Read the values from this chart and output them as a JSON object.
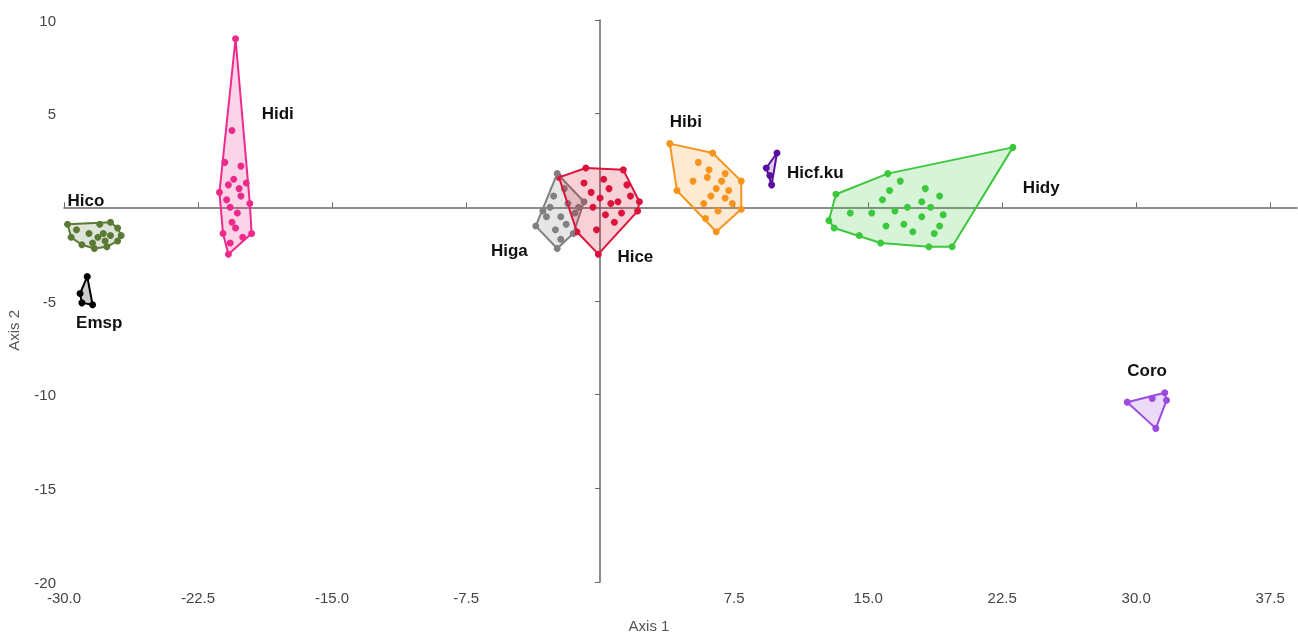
{
  "chart_data": {
    "type": "scatter",
    "xlabel": "Axis 1",
    "ylabel": "Axis 2",
    "xlim": [
      -30,
      39
    ],
    "ylim": [
      -20,
      10
    ],
    "xticks": [
      {
        "value": -30,
        "label": "-30.0"
      },
      -22.5,
      {
        "value": -15,
        "label": "-15.0"
      },
      -7.5,
      7.5,
      {
        "value": 15,
        "label": "15.0"
      },
      22.5,
      {
        "value": 30,
        "label": "30.0"
      },
      37.5
    ],
    "yticks": [
      -20,
      -15,
      -10,
      -5,
      5,
      10
    ],
    "grid": false,
    "marker": "circle",
    "series": [
      {
        "name": "Hico",
        "color": "#5a7a35",
        "x": [
          -29.8,
          -29.6,
          -29.0,
          -28.3,
          -27.6,
          -27.0,
          -26.8,
          -27.0,
          -27.4,
          -28.0,
          -27.8,
          -28.1,
          -27.4,
          -28.4,
          -27.7,
          -29.3,
          -28.6
        ],
        "values": [
          -0.9,
          -1.6,
          -2.0,
          -2.2,
          -2.1,
          -1.8,
          -1.5,
          -1.1,
          -0.8,
          -0.9,
          -1.4,
          -1.6,
          -1.5,
          -1.9,
          -1.8,
          -1.2,
          -1.4
        ]
      },
      {
        "name": "Emsp",
        "color": "#000000",
        "x": [
          -28.7,
          -29.1,
          -29.0,
          -28.4
        ],
        "values": [
          -3.7,
          -4.6,
          -5.1,
          -5.2
        ]
      },
      {
        "name": "Hidi",
        "color": "#ee2a8c",
        "x": [
          -20.4,
          -20.6,
          -21.0,
          -20.1,
          -21.3,
          -19.6,
          -19.5,
          -20.8,
          -20.5,
          -20.8,
          -20.2,
          -20.9,
          -20.3,
          -20.6,
          -20.0,
          -20.7,
          -21.1,
          -20.4,
          -20.1,
          -19.8,
          -20.7
        ],
        "values": [
          9.0,
          4.1,
          2.4,
          2.2,
          0.8,
          0.2,
          -1.4,
          -2.5,
          1.5,
          1.2,
          1.0,
          0.4,
          -0.3,
          -0.8,
          -1.6,
          -1.9,
          -1.4,
          -1.1,
          0.6,
          1.3,
          0.0
        ]
      },
      {
        "name": "Higa",
        "color": "#808080",
        "x": [
          -2.4,
          -3.6,
          -2.4,
          -1.5,
          -0.9,
          -2.8,
          -2.2,
          -1.8,
          -3.0,
          -2.5,
          -1.9,
          -2.0,
          -1.4,
          -3.2,
          -2.2,
          -1.2,
          -2.6
        ],
        "values": [
          1.8,
          -1.0,
          -2.2,
          -1.4,
          0.3,
          0.0,
          -0.5,
          0.2,
          -0.5,
          -1.2,
          -0.9,
          1.0,
          -0.3,
          -0.2,
          -1.7,
          0.0,
          0.6
        ]
      },
      {
        "name": "Hice",
        "color": "#dc143c",
        "x": [
          -2.3,
          -0.8,
          1.3,
          2.2,
          2.1,
          -0.1,
          -1.3,
          0.0,
          0.5,
          -0.5,
          1.0,
          0.3,
          -0.4,
          1.5,
          0.8,
          -0.9,
          0.2,
          1.2,
          -0.2,
          0.6,
          1.7
        ],
        "values": [
          1.6,
          2.1,
          2.0,
          0.3,
          -0.2,
          -2.5,
          -1.3,
          0.5,
          1.0,
          0.8,
          0.3,
          -0.4,
          0.0,
          1.2,
          -0.8,
          1.3,
          1.5,
          -0.3,
          -1.2,
          0.2,
          0.6
        ]
      },
      {
        "name": "Hibi",
        "color": "#f7941d",
        "x": [
          3.9,
          6.3,
          7.9,
          7.9,
          6.5,
          4.3,
          5.5,
          6.0,
          6.5,
          7.0,
          6.2,
          5.8,
          6.8,
          7.2,
          5.2,
          6.6,
          5.9,
          7.4,
          6.1,
          7.0
        ],
        "values": [
          3.4,
          2.9,
          1.4,
          -0.1,
          -1.3,
          0.9,
          2.4,
          1.6,
          1.0,
          0.5,
          0.6,
          0.2,
          1.4,
          0.9,
          1.4,
          -0.2,
          -0.6,
          0.2,
          2.0,
          1.8
        ]
      },
      {
        "name": "Hicf.ku",
        "color": "#5b0f9e",
        "x": [
          9.9,
          9.3,
          9.6,
          9.5
        ],
        "values": [
          2.9,
          2.1,
          1.2,
          1.7
        ]
      },
      {
        "name": "Hidy",
        "color": "#3cc83c",
        "x": [
          23.1,
          16.1,
          13.2,
          12.8,
          13.1,
          15.7,
          18.4,
          19.7,
          16.8,
          15.8,
          16.5,
          15.2,
          16.0,
          14.0,
          17.0,
          17.5,
          18.0,
          18.5,
          19.0,
          18.2,
          19.2,
          18.7,
          16.2,
          17.2,
          19.0,
          14.5,
          18.0
        ],
        "values": [
          3.2,
          1.8,
          0.7,
          -0.7,
          -1.1,
          -1.9,
          -2.1,
          -2.1,
          1.4,
          0.4,
          -0.2,
          -0.3,
          -1.0,
          -0.3,
          -0.9,
          -1.3,
          -0.5,
          0.0,
          0.6,
          1.0,
          -0.4,
          -1.4,
          0.9,
          0.0,
          -1.0,
          -1.5,
          0.3
        ]
      },
      {
        "name": "Coro",
        "color": "#9b4be0",
        "x": [
          29.5,
          30.9,
          31.6,
          31.7,
          31.1
        ],
        "values": [
          -10.4,
          -10.2,
          -9.9,
          -10.3,
          -11.8
        ]
      }
    ]
  }
}
